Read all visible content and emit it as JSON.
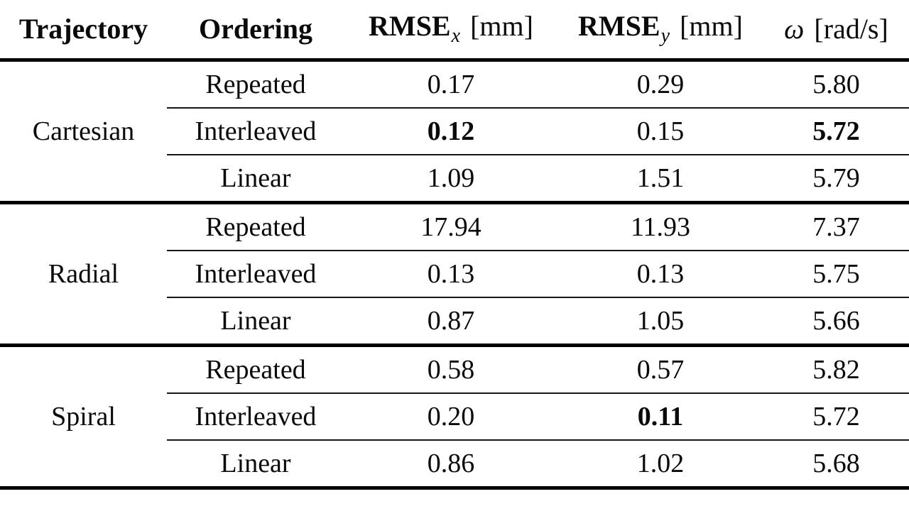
{
  "table": {
    "headers": [
      {
        "label": "Trajectory"
      },
      {
        "label": "Ordering"
      },
      {
        "prefix": "RMSE",
        "sub": "x",
        "unit": "[mm]"
      },
      {
        "prefix": "RMSE",
        "sub": "y",
        "unit": "[mm]"
      },
      {
        "symbol": "ω",
        "unit": "[rad/s]"
      }
    ],
    "groups": [
      {
        "trajectory": "Cartesian",
        "rows": [
          {
            "ordering": "Repeated",
            "rmse_x": "0.17",
            "rmse_y": "0.29",
            "omega": "5.80",
            "bold": []
          },
          {
            "ordering": "Interleaved",
            "rmse_x": "0.12",
            "rmse_y": "0.15",
            "omega": "5.72",
            "bold": [
              "rmse_x",
              "omega"
            ]
          },
          {
            "ordering": "Linear",
            "rmse_x": "1.09",
            "rmse_y": "1.51",
            "omega": "5.79",
            "bold": []
          }
        ]
      },
      {
        "trajectory": "Radial",
        "rows": [
          {
            "ordering": "Repeated",
            "rmse_x": "17.94",
            "rmse_y": "11.93",
            "omega": "7.37",
            "bold": []
          },
          {
            "ordering": "Interleaved",
            "rmse_x": "0.13",
            "rmse_y": "0.13",
            "omega": "5.75",
            "bold": []
          },
          {
            "ordering": "Linear",
            "rmse_x": "0.87",
            "rmse_y": "1.05",
            "omega": "5.66",
            "bold": []
          }
        ]
      },
      {
        "trajectory": "Spiral",
        "rows": [
          {
            "ordering": "Repeated",
            "rmse_x": "0.58",
            "rmse_y": "0.57",
            "omega": "5.82",
            "bold": []
          },
          {
            "ordering": "Interleaved",
            "rmse_x": "0.20",
            "rmse_y": "0.11",
            "omega": "5.72",
            "bold": [
              "rmse_y"
            ]
          },
          {
            "ordering": "Linear",
            "rmse_x": "0.86",
            "rmse_y": "1.02",
            "omega": "5.68",
            "bold": []
          }
        ]
      }
    ]
  }
}
